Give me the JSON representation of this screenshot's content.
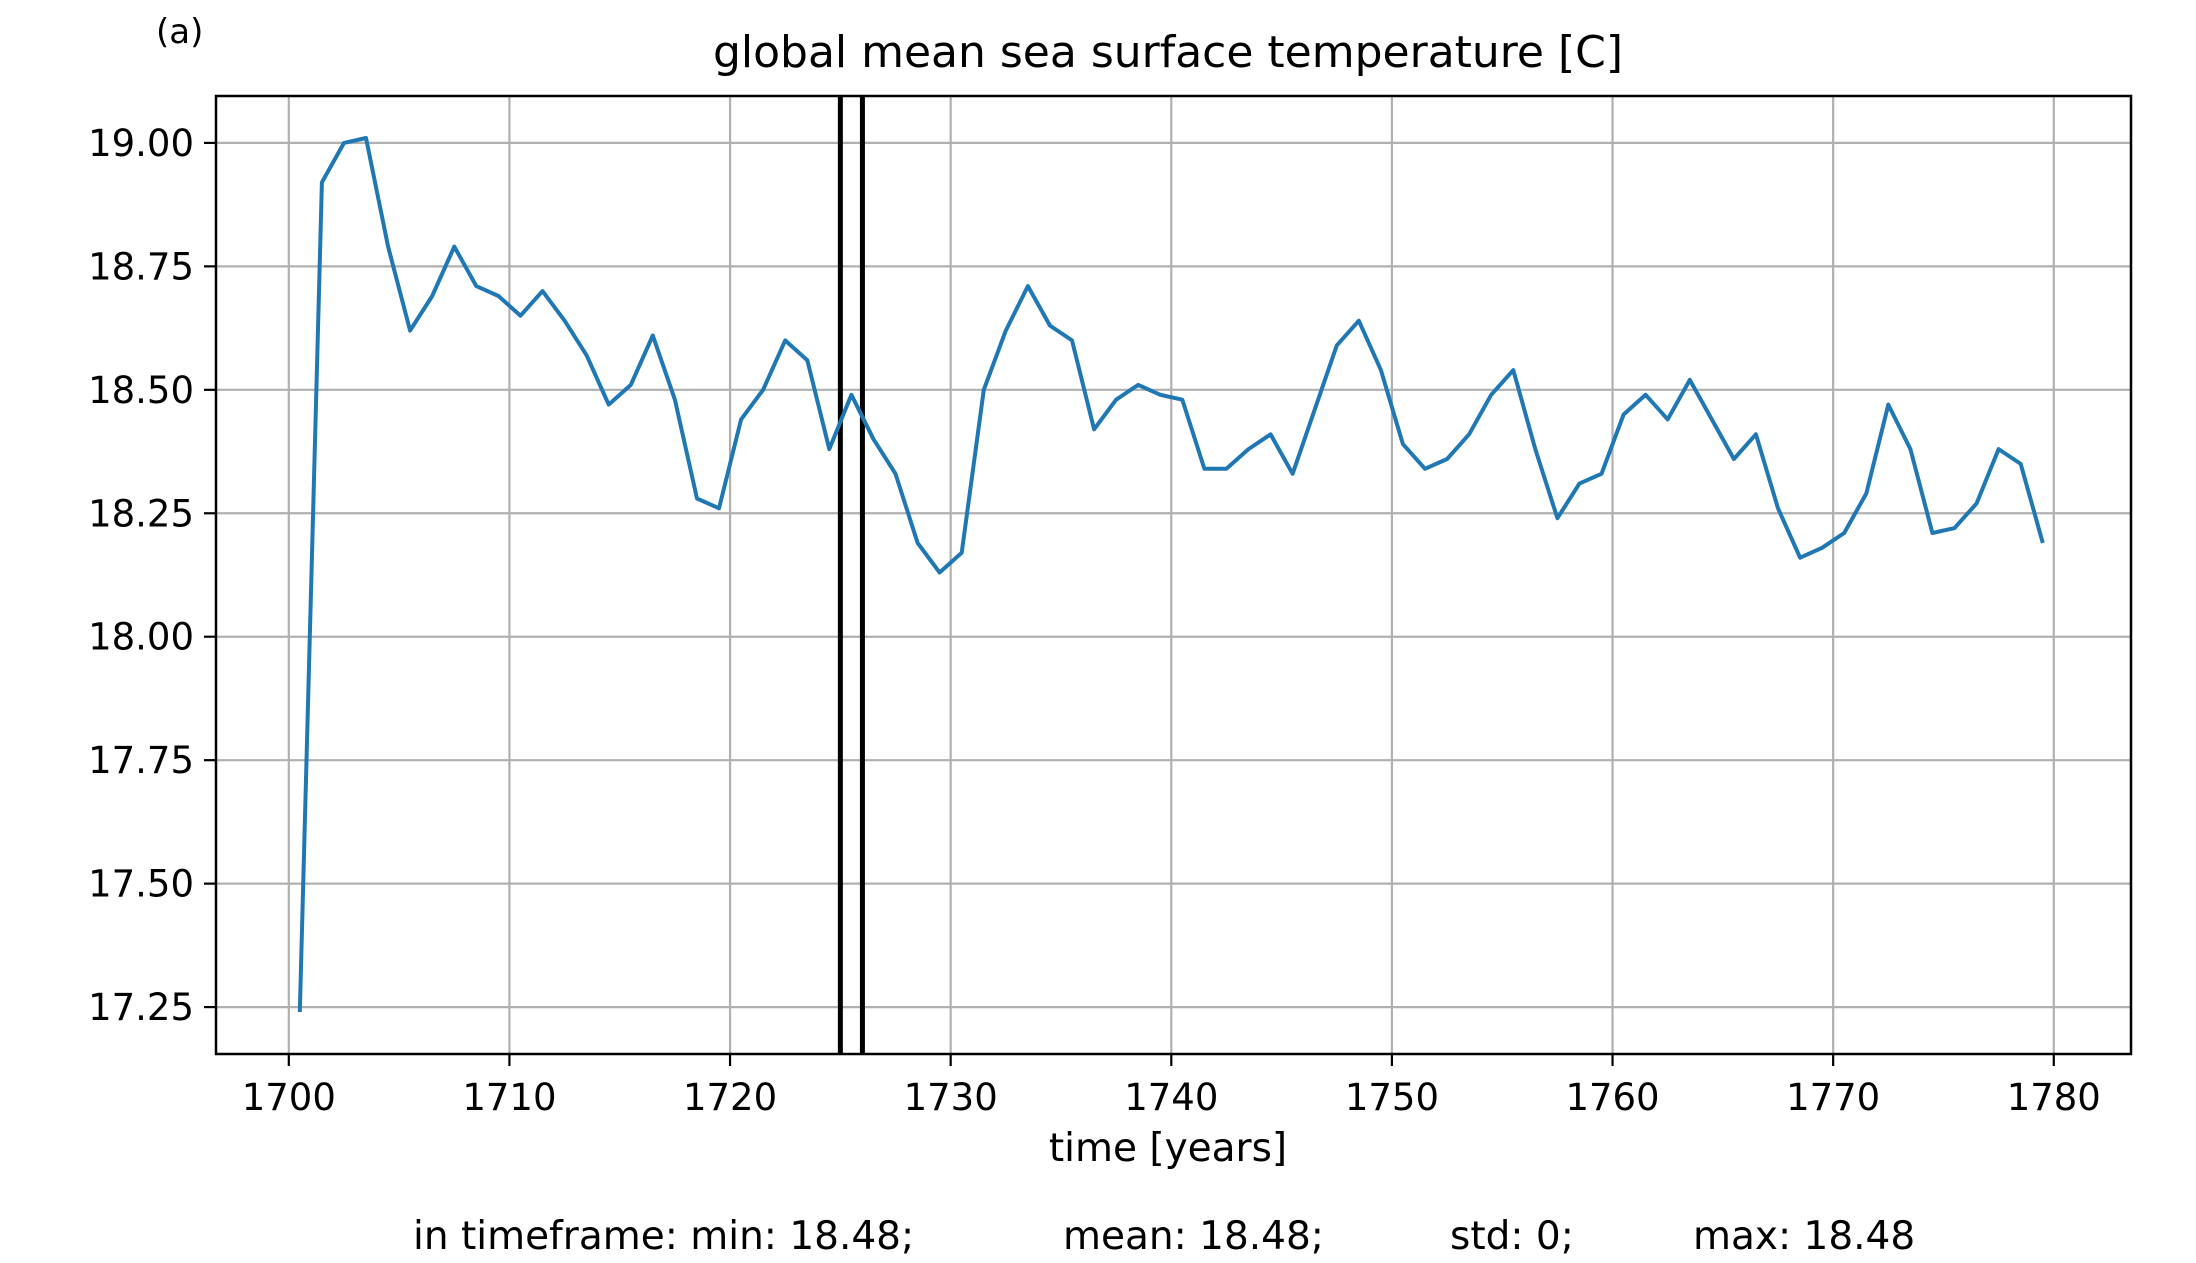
{
  "chart_data": {
    "type": "line",
    "panel_label": "(a)",
    "title": "global mean sea surface temperature [C]",
    "xlabel": "time [years]",
    "ylabel": "",
    "xlim": [
      1696.7,
      1783.5
    ],
    "ylim": [
      17.155,
      19.095
    ],
    "x_ticks": [
      1700,
      1710,
      1720,
      1730,
      1740,
      1750,
      1760,
      1770,
      1780
    ],
    "x_tick_labels": [
      "1700",
      "1710",
      "1720",
      "1730",
      "1740",
      "1750",
      "1760",
      "1770",
      "1780"
    ],
    "y_ticks": [
      17.25,
      17.5,
      17.75,
      18.0,
      18.25,
      18.5,
      18.75,
      19.0
    ],
    "y_tick_labels": [
      "17.25",
      "17.50",
      "17.75",
      "18.00",
      "18.25",
      "18.50",
      "18.75",
      "19.00"
    ],
    "grid": true,
    "series_color": "#1f77b4",
    "marker_color": "#000000",
    "markers": [
      1725.0,
      1726.0
    ],
    "series": [
      {
        "x": [
          1700.5,
          1701.5,
          1702.5,
          1703.5,
          1704.5,
          1705.5,
          1706.5,
          1707.5,
          1708.5,
          1709.5,
          1710.5,
          1711.5,
          1712.5,
          1713.5,
          1714.5,
          1715.5,
          1716.5,
          1717.5,
          1718.5,
          1719.5,
          1720.5,
          1721.5,
          1722.5,
          1723.5,
          1724.5,
          1725.5,
          1726.5,
          1727.5,
          1728.5,
          1729.5,
          1730.5,
          1731.5,
          1732.5,
          1733.5,
          1734.5,
          1735.5,
          1736.5,
          1737.5,
          1738.5,
          1739.5,
          1740.5,
          1741.5,
          1742.5,
          1743.5,
          1744.5,
          1745.5,
          1746.5,
          1747.5,
          1748.5,
          1749.5,
          1750.5,
          1751.5,
          1752.5,
          1753.5,
          1754.5,
          1755.5,
          1756.5,
          1757.5,
          1758.5,
          1759.5,
          1760.5,
          1761.5,
          1762.5,
          1763.5,
          1764.5,
          1765.5,
          1766.5,
          1767.5,
          1768.5,
          1769.5,
          1770.5,
          1771.5,
          1772.5,
          1773.5,
          1774.5,
          1775.5,
          1776.5,
          1777.5,
          1778.5,
          1779.5
        ],
        "y": [
          17.24,
          18.92,
          19.0,
          19.01,
          18.79,
          18.62,
          18.69,
          18.79,
          18.71,
          18.69,
          18.65,
          18.7,
          18.64,
          18.57,
          18.47,
          18.51,
          18.61,
          18.48,
          18.28,
          18.26,
          18.44,
          18.5,
          18.6,
          18.56,
          18.38,
          18.49,
          18.4,
          18.33,
          18.19,
          18.13,
          18.17,
          18.5,
          18.62,
          18.71,
          18.63,
          18.6,
          18.42,
          18.48,
          18.51,
          18.49,
          18.48,
          18.34,
          18.34,
          18.38,
          18.41,
          18.33,
          18.46,
          18.59,
          18.64,
          18.54,
          18.39,
          18.34,
          18.36,
          18.41,
          18.49,
          18.54,
          18.38,
          18.24,
          18.31,
          18.33,
          18.45,
          18.49,
          18.44,
          18.52,
          18.44,
          18.36,
          18.41,
          18.26,
          18.16,
          18.18,
          18.21,
          18.29,
          18.47,
          18.38,
          18.21,
          18.22,
          18.27,
          18.38,
          18.35,
          18.19
        ]
      }
    ],
    "stats": {
      "min": "in timeframe: min: 18.48;",
      "mean": "mean: 18.48;",
      "std": "std: 0;",
      "max": "max: 18.48"
    }
  }
}
